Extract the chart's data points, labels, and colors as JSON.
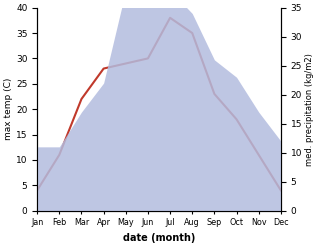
{
  "months": [
    "Jan",
    "Feb",
    "Mar",
    "Apr",
    "May",
    "Jun",
    "Jul",
    "Aug",
    "Sep",
    "Oct",
    "Nov",
    "Dec"
  ],
  "month_indices": [
    1,
    2,
    3,
    4,
    5,
    6,
    7,
    8,
    9,
    10,
    11,
    12
  ],
  "temperature": [
    4,
    11,
    22,
    28,
    29,
    30,
    38,
    35,
    23,
    18,
    11,
    4
  ],
  "precipitation": [
    11,
    11,
    17,
    22,
    38,
    39,
    38,
    34,
    26,
    23,
    17,
    12
  ],
  "temp_color": "#c0392b",
  "precip_fill_color": "#b3bcdf",
  "precip_fill_alpha": 0.85,
  "ylim_left": [
    0,
    40
  ],
  "ylim_right": [
    0,
    35
  ],
  "xlabel": "date (month)",
  "ylabel_left": "max temp (C)",
  "ylabel_right": "med. precipitation (kg/m2)",
  "bg_color": "#ffffff"
}
